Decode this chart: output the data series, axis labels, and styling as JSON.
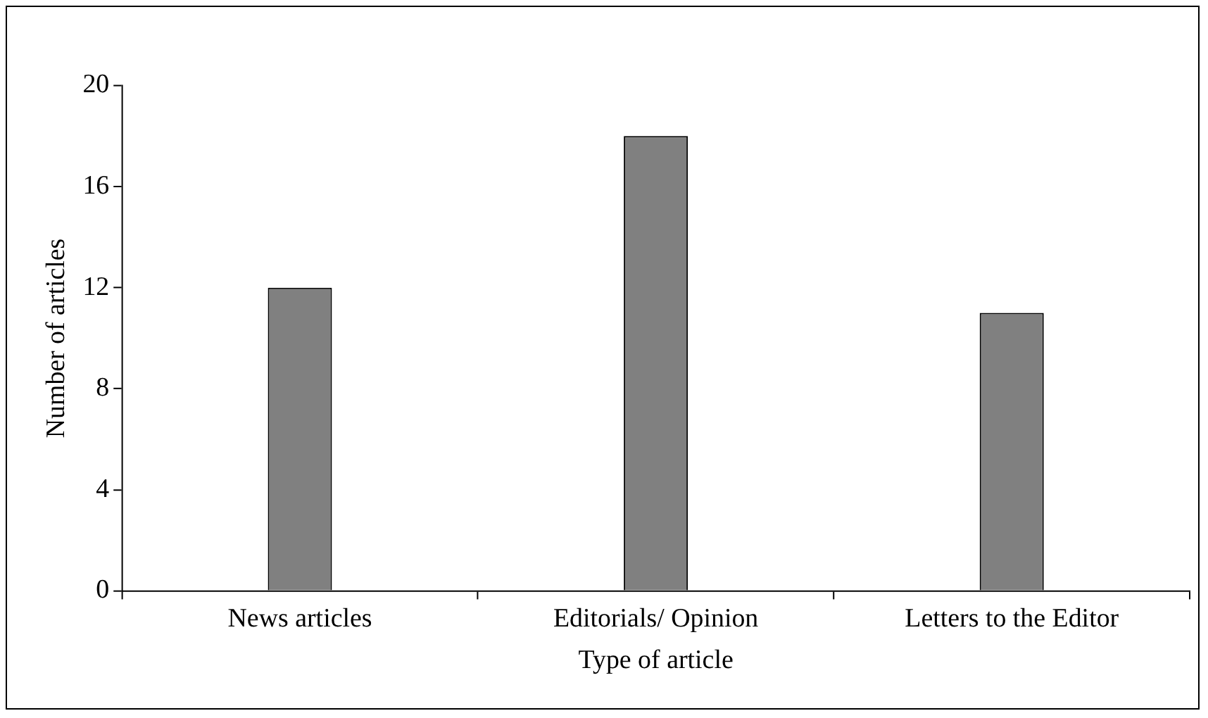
{
  "chart_data": {
    "type": "bar",
    "xlabel": "Type of article",
    "ylabel": "Number of articles",
    "categories": [
      "News articles",
      "Editorials/ Opinion",
      "Letters to the Editor"
    ],
    "values": [
      12,
      18,
      11
    ],
    "color": "#808080",
    "ylim": [
      0,
      20
    ],
    "yticks": [
      0,
      4,
      8,
      12,
      16,
      20
    ],
    "grid": false,
    "legend": false
  }
}
